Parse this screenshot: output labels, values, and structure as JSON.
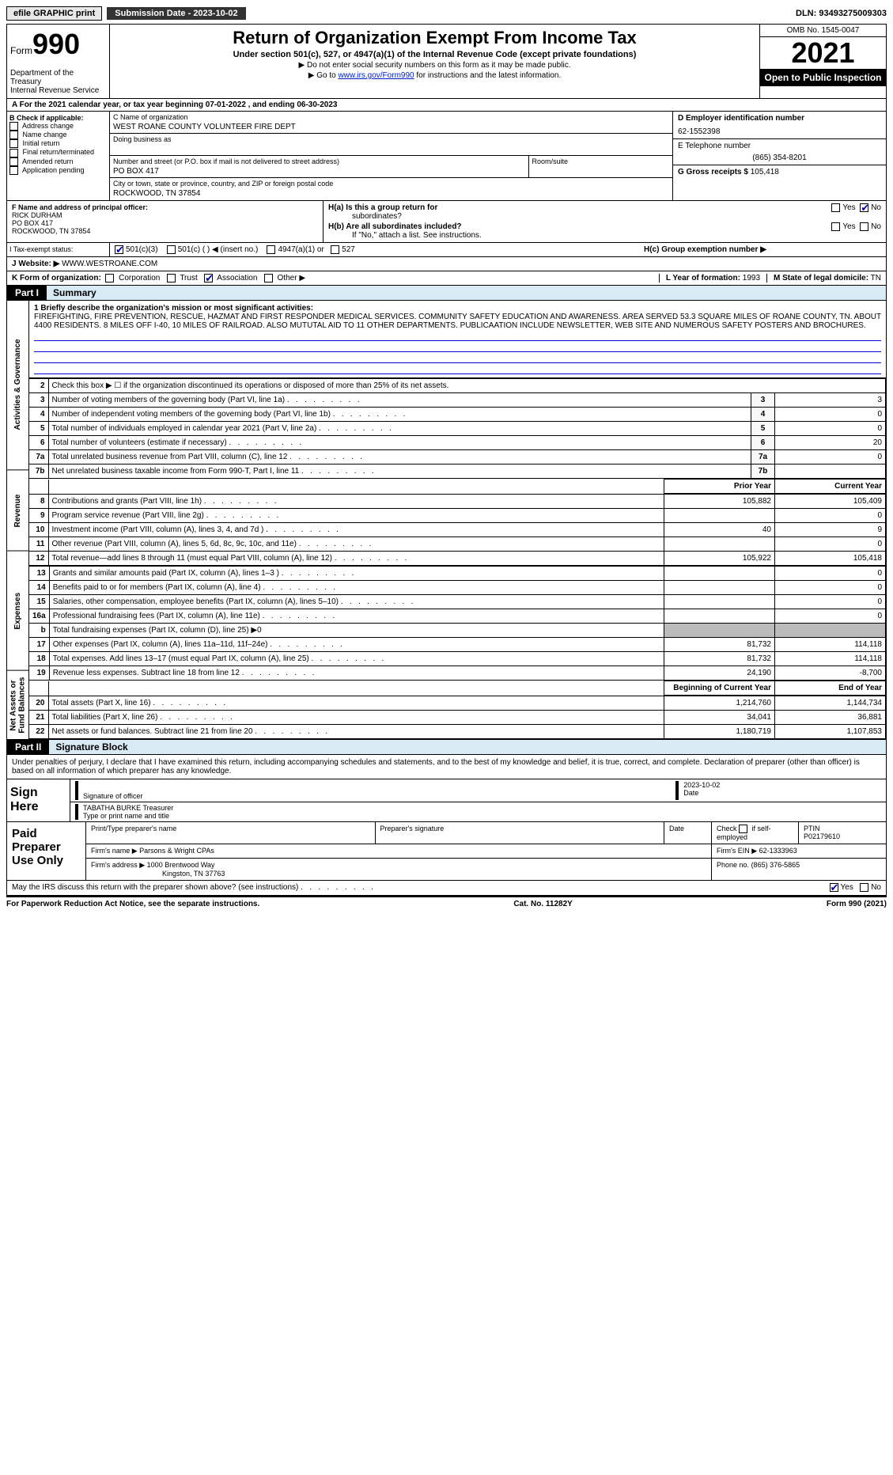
{
  "topbar": {
    "efile": "efile GRAPHIC print",
    "submission_label": "Submission Date - 2023-10-02",
    "dln": "DLN: 93493275009303"
  },
  "header": {
    "form_word": "Form",
    "form_no": "990",
    "dept": "Department of the Treasury",
    "irs": "Internal Revenue Service",
    "title": "Return of Organization Exempt From Income Tax",
    "subtitle": "Under section 501(c), 527, or 4947(a)(1) of the Internal Revenue Code (except private foundations)",
    "note1": "▶ Do not enter social security numbers on this form as it may be made public.",
    "note2_pre": "▶ Go to ",
    "note2_link": "www.irs.gov/Form990",
    "note2_post": " for instructions and the latest information.",
    "omb": "OMB No. 1545-0047",
    "year": "2021",
    "public": "Open to Public Inspection"
  },
  "row_a": "A For the 2021 calendar year, or tax year beginning 07-01-2022     , and ending 06-30-2023",
  "col_b": {
    "title": "B Check if applicable:",
    "opts": [
      "Address change",
      "Name change",
      "Initial return",
      "Final return/terminated",
      "Amended return",
      "Application pending"
    ]
  },
  "col_c": {
    "name_lbl": "C Name of organization",
    "name": "WEST ROANE COUNTY VOLUNTEER FIRE DEPT",
    "dba_lbl": "Doing business as",
    "addr_lbl": "Number and street (or P.O. box if mail is not delivered to street address)",
    "room_lbl": "Room/suite",
    "addr": "PO BOX 417",
    "city_lbl": "City or town, state or province, country, and ZIP or foreign postal code",
    "city": "ROCKWOOD, TN  37854"
  },
  "col_d": {
    "ein_lbl": "D Employer identification number",
    "ein": "62-1552398",
    "tel_lbl": "E Telephone number",
    "tel": "(865) 354-8201",
    "gross_lbl": "G Gross receipts $",
    "gross": "105,418"
  },
  "row_f": {
    "lbl": "F  Name and address of principal officer:",
    "name": "RICK DURHAM",
    "addr1": "PO BOX 417",
    "addr2": "ROCKWOOD, TN  37854"
  },
  "row_h": {
    "ha": "H(a)  Is this a group return for",
    "ha2": "subordinates?",
    "hb": "H(b)  Are all subordinates included?",
    "hb_note": "If \"No,\" attach a list. See instructions.",
    "hc": "H(c)  Group exemption number ▶"
  },
  "row_i": {
    "lbl": "I   Tax-exempt status:",
    "o1": "501(c)(3)",
    "o2": "501(c) (  ) ◀ (insert no.)",
    "o3": "4947(a)(1) or",
    "o4": "527"
  },
  "row_j": {
    "lbl": "J   Website: ▶",
    "val": "WWW.WESTROANE.COM"
  },
  "row_k": {
    "lbl": "K Form of organization:",
    "opts": [
      "Corporation",
      "Trust",
      "Association",
      "Other ▶"
    ],
    "l_lbl": "L Year of formation:",
    "l_val": "1993",
    "m_lbl": "M State of legal domicile:",
    "m_val": "TN"
  },
  "parts": {
    "p1": "Part I",
    "p1_title": "Summary",
    "p2": "Part II",
    "p2_title": "Signature Block"
  },
  "mission": {
    "lbl": "1  Briefly describe the organization's mission or most significant activities:",
    "text": "FIREFIGHTING, FIRE PREVENTION, RESCUE, HAZMAT AND FIRST RESPONDER MEDICAL SERVICES. COMMUNITY SAFETY EDUCATION AND AWARENESS. AREA SERVED 53.3 SQUARE MILES OF ROANE COUNTY, TN. ABOUT 4400 RESIDENTS. 8 MILES OFF I-40, 10 MILES OF RAILROAD. ALSO MUTUTAL AID TO 11 OTHER DEPARTMENTS. PUBLICAATION INCLUDE NEWSLETTER, WEB SITE AND NUMEROUS SAFETY POSTERS AND BROCHURES."
  },
  "vside": {
    "act": "Activities & Governance",
    "rev": "Revenue",
    "exp": "Expenses",
    "net": "Net Assets or Fund Balances"
  },
  "lines_gov": [
    {
      "n": "2",
      "d": "Check this box ▶ ☐  if the organization discontinued its operations or disposed of more than 25% of its net assets."
    },
    {
      "n": "3",
      "d": "Number of voting members of the governing body (Part VI, line 1a)",
      "c": "3",
      "v": "3"
    },
    {
      "n": "4",
      "d": "Number of independent voting members of the governing body (Part VI, line 1b)",
      "c": "4",
      "v": "0"
    },
    {
      "n": "5",
      "d": "Total number of individuals employed in calendar year 2021 (Part V, line 2a)",
      "c": "5",
      "v": "0"
    },
    {
      "n": "6",
      "d": "Total number of volunteers (estimate if necessary)",
      "c": "6",
      "v": "20"
    },
    {
      "n": "7a",
      "d": "Total unrelated business revenue from Part VIII, column (C), line 12",
      "c": "7a",
      "v": "0"
    },
    {
      "n": "7b",
      "d": "Net unrelated business taxable income from Form 990-T, Part I, line 11",
      "c": "7b",
      "v": ""
    }
  ],
  "hdr_prior": "Prior Year",
  "hdr_curr": "Current Year",
  "lines_rev": [
    {
      "n": "8",
      "d": "Contributions and grants (Part VIII, line 1h)",
      "p": "105,882",
      "c": "105,409"
    },
    {
      "n": "9",
      "d": "Program service revenue (Part VIII, line 2g)",
      "p": "",
      "c": "0"
    },
    {
      "n": "10",
      "d": "Investment income (Part VIII, column (A), lines 3, 4, and 7d )",
      "p": "40",
      "c": "9"
    },
    {
      "n": "11",
      "d": "Other revenue (Part VIII, column (A), lines 5, 6d, 8c, 9c, 10c, and 11e)",
      "p": "",
      "c": "0"
    },
    {
      "n": "12",
      "d": "Total revenue—add lines 8 through 11 (must equal Part VIII, column (A), line 12)",
      "p": "105,922",
      "c": "105,418"
    }
  ],
  "lines_exp": [
    {
      "n": "13",
      "d": "Grants and similar amounts paid (Part IX, column (A), lines 1–3 )",
      "p": "",
      "c": "0"
    },
    {
      "n": "14",
      "d": "Benefits paid to or for members (Part IX, column (A), line 4)",
      "p": "",
      "c": "0"
    },
    {
      "n": "15",
      "d": "Salaries, other compensation, employee benefits (Part IX, column (A), lines 5–10)",
      "p": "",
      "c": "0"
    },
    {
      "n": "16a",
      "d": "Professional fundraising fees (Part IX, column (A), line 11e)",
      "p": "",
      "c": "0"
    },
    {
      "n": "b",
      "d": "Total fundraising expenses (Part IX, column (D), line 25) ▶0",
      "gray": true
    },
    {
      "n": "17",
      "d": "Other expenses (Part IX, column (A), lines 11a–11d, 11f–24e)",
      "p": "81,732",
      "c": "114,118"
    },
    {
      "n": "18",
      "d": "Total expenses. Add lines 13–17 (must equal Part IX, column (A), line 25)",
      "p": "81,732",
      "c": "114,118"
    },
    {
      "n": "19",
      "d": "Revenue less expenses. Subtract line 18 from line 12",
      "p": "24,190",
      "c": "-8,700"
    }
  ],
  "hdr_beg": "Beginning of Current Year",
  "hdr_end": "End of Year",
  "lines_net": [
    {
      "n": "20",
      "d": "Total assets (Part X, line 16)",
      "p": "1,214,760",
      "c": "1,144,734"
    },
    {
      "n": "21",
      "d": "Total liabilities (Part X, line 26)",
      "p": "34,041",
      "c": "36,881"
    },
    {
      "n": "22",
      "d": "Net assets or fund balances. Subtract line 21 from line 20",
      "p": "1,180,719",
      "c": "1,107,853"
    }
  ],
  "sig_decl": "Under penalties of perjury, I declare that I have examined this return, including accompanying schedules and statements, and to the best of my knowledge and belief, it is true, correct, and complete. Declaration of preparer (other than officer) is based on all information of which preparer has any knowledge.",
  "sign_here": "Sign Here",
  "sig": {
    "sig_lbl": "Signature of officer",
    "date": "2023-10-02",
    "date_lbl": "Date",
    "name": "TABATHA BURKE  Treasurer",
    "name_lbl": "Type or print name and title"
  },
  "paid": {
    "title": "Paid Preparer Use Only",
    "h1": "Print/Type preparer's name",
    "h2": "Preparer's signature",
    "h3": "Date",
    "h4_pre": "Check",
    "h4_post": "if self-employed",
    "ptin_lbl": "PTIN",
    "ptin": "P02179610",
    "firm_lbl": "Firm's name    ▶",
    "firm": "Parsons & Wright CPAs",
    "ein_lbl": "Firm's EIN ▶",
    "ein": "62-1333963",
    "addr_lbl": "Firm's address ▶",
    "addr1": "1000 Brentwood Way",
    "addr2": "Kingston, TN  37763",
    "phone_lbl": "Phone no.",
    "phone": "(865) 376-5865"
  },
  "discuss": "May the IRS discuss this return with the preparer shown above? (see instructions)",
  "footer": {
    "l": "For Paperwork Reduction Act Notice, see the separate instructions.",
    "m": "Cat. No. 11282Y",
    "r": "Form 990 (2021)"
  },
  "yes": "Yes",
  "no": "No"
}
